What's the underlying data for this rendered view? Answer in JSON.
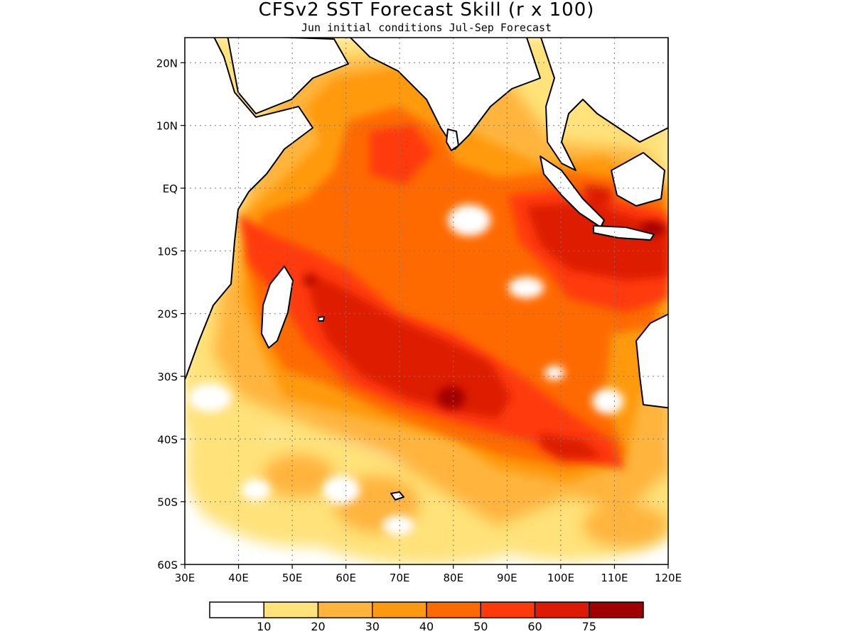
{
  "title": "CFSv2 SST Forecast Skill (r x 100)",
  "subtitle": "Jun initial conditions   Jul-Sep Forecast",
  "map": {
    "region": "Indian Ocean",
    "lon_range": [
      30,
      120
    ],
    "lat_range": [
      -60,
      24
    ],
    "lon_ticks": [
      {
        "value": 30,
        "label": "30E"
      },
      {
        "value": 40,
        "label": "40E"
      },
      {
        "value": 50,
        "label": "50E"
      },
      {
        "value": 60,
        "label": "60E"
      },
      {
        "value": 70,
        "label": "70E"
      },
      {
        "value": 80,
        "label": "80E"
      },
      {
        "value": 90,
        "label": "90E"
      },
      {
        "value": 100,
        "label": "100E"
      },
      {
        "value": 110,
        "label": "110E"
      },
      {
        "value": 120,
        "label": "120E"
      }
    ],
    "lat_ticks": [
      {
        "value": 20,
        "label": "20N"
      },
      {
        "value": 10,
        "label": "10N"
      },
      {
        "value": 0,
        "label": "EQ"
      },
      {
        "value": -10,
        "label": "10S"
      },
      {
        "value": -20,
        "label": "20S"
      },
      {
        "value": -30,
        "label": "30S"
      },
      {
        "value": -40,
        "label": "40S"
      },
      {
        "value": -50,
        "label": "50S"
      },
      {
        "value": -60,
        "label": "60S"
      }
    ],
    "gridlines": "dotted"
  },
  "legend": {
    "colors": [
      "#ffffff",
      "#ffe27a",
      "#ffb43c",
      "#ff9a10",
      "#ff6a00",
      "#ff3a0a",
      "#dd1a06",
      "#a00000"
    ],
    "labels": [
      "10",
      "20",
      "30",
      "40",
      "50",
      "60",
      "75"
    ]
  }
}
